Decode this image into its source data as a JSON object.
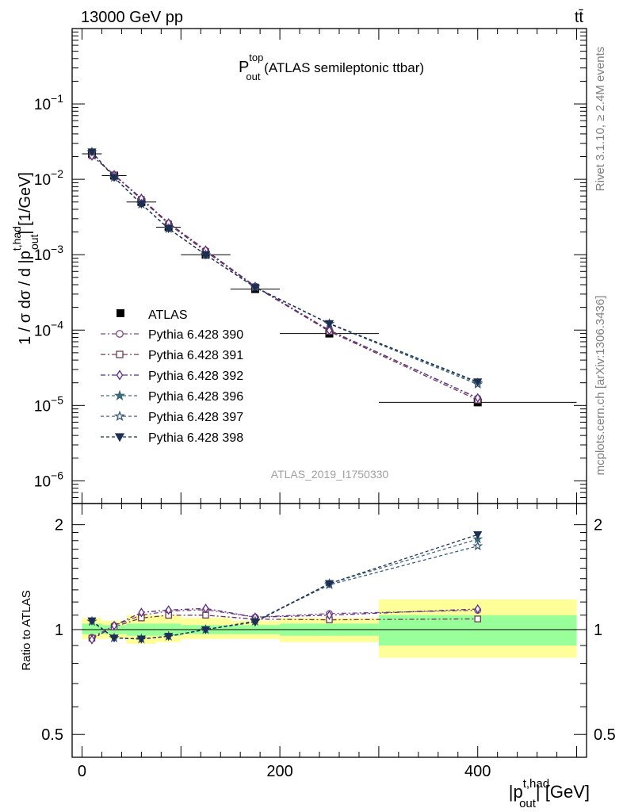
{
  "header": {
    "energy_label": "13000 GeV pp",
    "process_label": "tt̄"
  },
  "side_labels": {
    "rivet": "Rivet 3.1.10, ≥ 2.4M events",
    "mcplots": "mcplots.cern.ch [arXiv:1306.3436]"
  },
  "analysis_id": "ATLAS_2019_I1750330",
  "chart_data": [
    {
      "panel": "main",
      "type": "scatter",
      "title_main": "P",
      "title_sup": "top",
      "title_sub": "out",
      "title_rest": " (ATLAS semileptonic ttbar)",
      "ylabel_pre": "1 / σ dσ / d |p",
      "ylabel_sup": "t,had",
      "ylabel_sub": "out",
      "ylabel_post": "| [1/GeV]",
      "yscale": "log",
      "ylim": [
        5e-07,
        1
      ],
      "xlim": [
        -10,
        510
      ],
      "y_tick_labels": [
        {
          "mant": "10",
          "exp": "−6",
          "value": 1e-06
        },
        {
          "mant": "10",
          "exp": "−5",
          "value": 1e-05
        },
        {
          "mant": "10",
          "exp": "−4",
          "value": 0.0001
        },
        {
          "mant": "10",
          "exp": "−3",
          "value": 0.001
        },
        {
          "mant": "10",
          "exp": "−2",
          "value": 0.01
        },
        {
          "mant": "10",
          "exp": "−1",
          "value": 0.1
        }
      ],
      "legend_position": "center-left",
      "x": [
        10,
        32.5,
        60,
        87.5,
        125,
        175,
        250,
        400
      ],
      "data": {
        "name": "ATLAS",
        "y": [
          0.0218,
          0.0112,
          0.005,
          0.00232,
          0.001,
          0.00035,
          9e-05,
          1.1e-05
        ],
        "xerr": [
          10,
          12.5,
          15,
          12.5,
          25,
          25,
          50,
          100
        ]
      },
      "series": [
        {
          "name": "Pythia 6.428 390",
          "color": "#7a4a80",
          "marker": "circle-open",
          "dash": "6,3,2,3",
          "y": [
            0.0207,
            0.0115,
            0.0055,
            0.00262,
            0.00114,
            0.00038,
            0.0001,
            1.25e-05
          ]
        },
        {
          "name": "Pythia 6.428 391",
          "color": "#6e3a52",
          "marker": "square-open",
          "dash": "6,3,2,3",
          "y": [
            0.0206,
            0.0114,
            0.0054,
            0.00255,
            0.0011,
            0.000375,
            9.6e-05,
            1.18e-05
          ]
        },
        {
          "name": "Pythia 6.428 392",
          "color": "#5a2d82",
          "marker": "diamond-open",
          "dash": "6,3,2,3",
          "y": [
            0.0204,
            0.0115,
            0.0056,
            0.00264,
            0.00115,
            0.00038,
            9.9e-05,
            1.26e-05
          ]
        },
        {
          "name": "Pythia 6.428 396",
          "color": "#3f6a78",
          "marker": "star-filled",
          "dash": "4,3",
          "y": [
            0.023,
            0.0106,
            0.0047,
            0.00222,
            0.001,
            0.00037,
            0.000122,
            2e-05
          ]
        },
        {
          "name": "Pythia 6.428 397",
          "color": "#3a5a78",
          "marker": "star-open",
          "dash": "4,3",
          "y": [
            0.023,
            0.0106,
            0.0047,
            0.00222,
            0.001,
            0.00037,
            0.000121,
            1.91e-05
          ]
        },
        {
          "name": "Pythia 6.428 398",
          "color": "#1c2f52",
          "marker": "triangle-down-filled",
          "dash": "4,3",
          "y": [
            0.0231,
            0.0106,
            0.0047,
            0.00222,
            0.001,
            0.000368,
            0.000122,
            2.06e-05
          ]
        }
      ]
    },
    {
      "panel": "ratio",
      "type": "scatter",
      "ylabel": "Ratio to ATLAS",
      "yscale": "log",
      "ylim": [
        0.43,
        2.3
      ],
      "xlim": [
        -10,
        510
      ],
      "x_tick_labels": [
        {
          "label": "0",
          "value": 0
        },
        {
          "label": "200",
          "value": 200
        },
        {
          "label": "400",
          "value": 400
        }
      ],
      "y_tick_labels": [
        {
          "label": "0.5",
          "value": 0.5
        },
        {
          "label": "1",
          "value": 1
        },
        {
          "label": "2",
          "value": 2
        }
      ],
      "xlabel_pre": "|p",
      "xlabel_sup": "t,had",
      "xlabel_sub": "out",
      "xlabel_post": "| [GeV]",
      "bands": [
        {
          "x0": 0,
          "x1": 20,
          "inner": [
            0.97,
            1.04
          ],
          "outer": [
            0.94,
            1.08
          ]
        },
        {
          "x0": 20,
          "x1": 45,
          "inner": [
            0.97,
            1.03
          ],
          "outer": [
            0.94,
            1.06
          ]
        },
        {
          "x0": 45,
          "x1": 75,
          "inner": [
            0.96,
            1.04
          ],
          "outer": [
            0.91,
            1.1
          ]
        },
        {
          "x0": 75,
          "x1": 100,
          "inner": [
            0.96,
            1.04
          ],
          "outer": [
            0.92,
            1.1
          ]
        },
        {
          "x0": 100,
          "x1": 150,
          "inner": [
            0.97,
            1.03
          ],
          "outer": [
            0.94,
            1.08
          ]
        },
        {
          "x0": 150,
          "x1": 200,
          "inner": [
            0.97,
            1.03
          ],
          "outer": [
            0.94,
            1.06
          ]
        },
        {
          "x0": 200,
          "x1": 300,
          "inner": [
            0.96,
            1.04
          ],
          "outer": [
            0.92,
            1.08
          ]
        },
        {
          "x0": 300,
          "x1": 500,
          "inner": [
            0.9,
            1.1
          ],
          "outer": [
            0.83,
            1.22
          ]
        }
      ],
      "reference": 1
    }
  ]
}
